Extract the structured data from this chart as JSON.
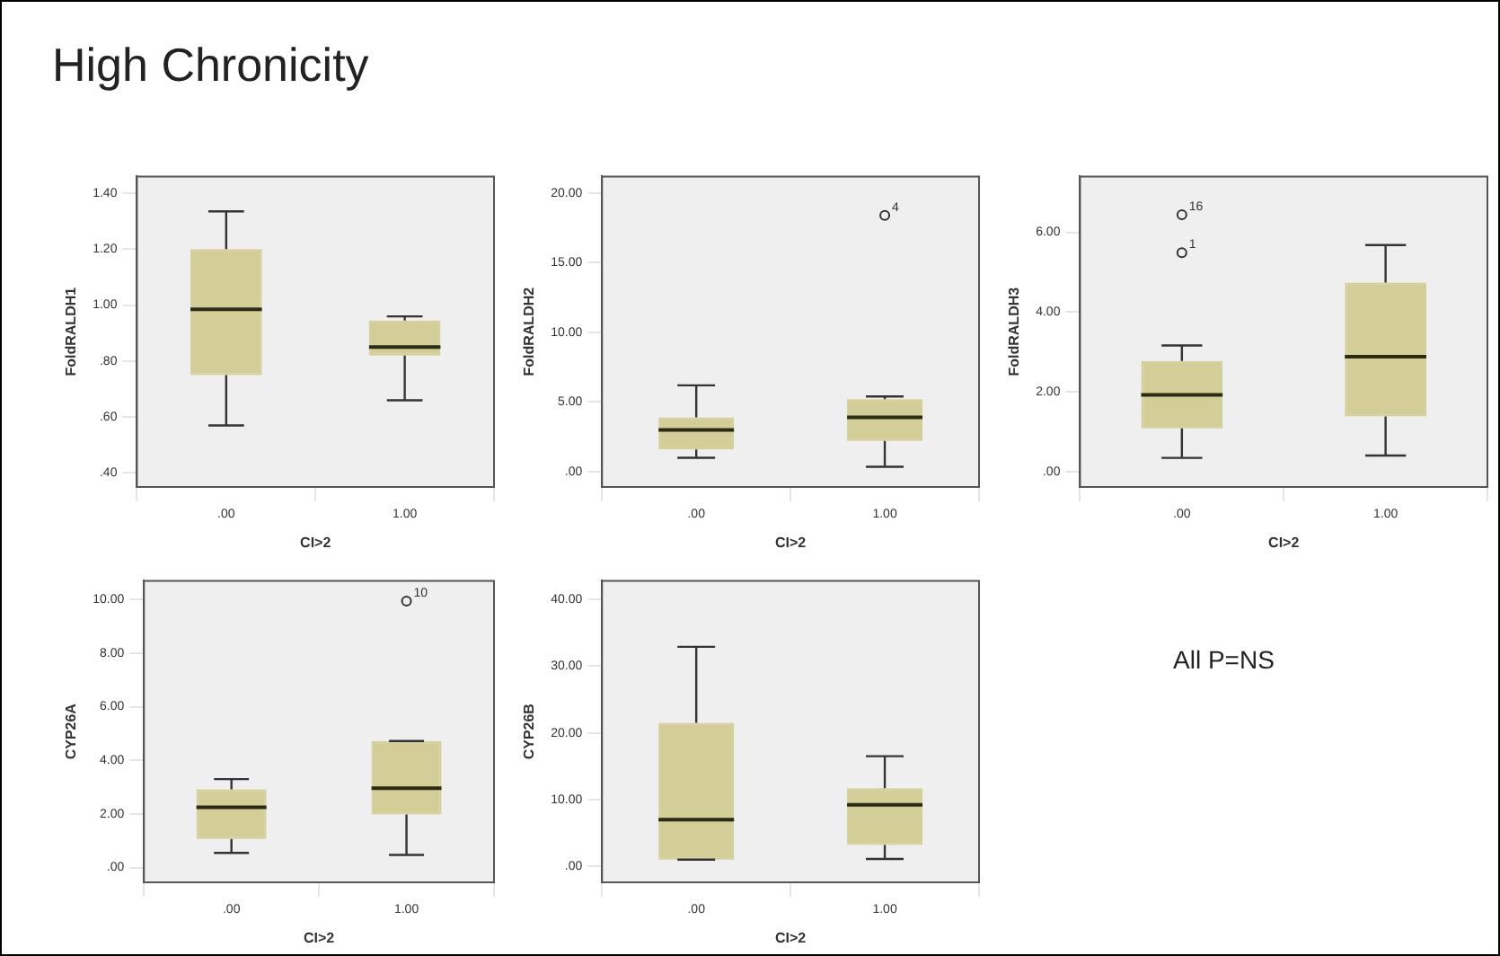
{
  "chart_data": [
    {
      "type": "box",
      "title": "High Chronicity",
      "xlabel": "CI>2",
      "ylabel": "FoldRALDH1",
      "categories": [
        ".00",
        "1.00"
      ],
      "color": "#d3cd98",
      "boxes": [
        {
          "low": 0.57,
          "q1": 0.75,
          "median": 0.985,
          "q3": 1.2,
          "high": 1.335
        },
        {
          "low": 0.66,
          "q1": 0.82,
          "median": 0.85,
          "q3": 0.945,
          "high": 0.96
        }
      ],
      "ylim": [
        0.35,
        1.46
      ],
      "yticks": [
        {
          "value": 0.4,
          "label": ".40"
        },
        {
          "value": 0.6,
          "label": ".60"
        },
        {
          "value": 0.8,
          "label": ".80"
        },
        {
          "value": 1.0,
          "label": "1.00"
        },
        {
          "value": 1.2,
          "label": "1.20"
        },
        {
          "value": 1.4,
          "label": "1.40"
        }
      ]
    },
    {
      "type": "box",
      "xlabel": "CI>2",
      "ylabel": "FoldRALDH2",
      "categories": [
        ".00",
        "1.00"
      ],
      "color": "#d3cd98",
      "boxes": [
        {
          "low": 1.0,
          "q1": 1.6,
          "median": 3.0,
          "q3": 3.9,
          "high": 6.2
        },
        {
          "low": 0.35,
          "q1": 2.2,
          "median": 3.9,
          "q3": 5.2,
          "high": 5.4,
          "outliers": [
            18.4
          ]
        }
      ],
      "ylim": [
        -1.1,
        21.2
      ],
      "yticks": [
        {
          "value": 0,
          "label": ".00"
        },
        {
          "value": 5,
          "label": "5.00"
        },
        {
          "value": 10,
          "label": "10.00"
        },
        {
          "value": 15,
          "label": "15.00"
        },
        {
          "value": 20,
          "label": "20.00"
        }
      ],
      "annotations": [
        "4"
      ]
    },
    {
      "type": "box",
      "xlabel": "CI>2",
      "ylabel": "FoldRALDH3",
      "categories": [
        ".00",
        "1.00"
      ],
      "color": "#d3cd98",
      "boxes": [
        {
          "low": 0.34,
          "q1": 1.08,
          "median": 1.92,
          "q3": 2.77,
          "high": 3.16,
          "outliers": [
            6.44,
            5.49
          ]
        },
        {
          "low": 0.4,
          "q1": 1.38,
          "median": 2.88,
          "q3": 4.74,
          "high": 5.68
        }
      ],
      "ylim": [
        -0.39,
        7.4
      ],
      "yticks": [
        {
          "value": 0,
          "label": ".00"
        },
        {
          "value": 2,
          "label": "2.00"
        },
        {
          "value": 4,
          "label": "4.00"
        },
        {
          "value": 6,
          "label": "6.00"
        }
      ],
      "annotations": [
        "16",
        "1"
      ]
    },
    {
      "type": "box",
      "xlabel": "CI>2",
      "ylabel": "CYP26A",
      "categories": [
        ".00",
        "1.00"
      ],
      "color": "#d3cd98",
      "boxes": [
        {
          "low": 0.55,
          "q1": 1.07,
          "median": 2.25,
          "q3": 2.92,
          "high": 3.3
        },
        {
          "low": 0.47,
          "q1": 1.98,
          "median": 2.96,
          "q3": 4.72,
          "high": 4.72,
          "outliers": [
            9.94
          ]
        }
      ],
      "ylim": [
        -0.55,
        10.7
      ],
      "yticks": [
        {
          "value": 0,
          "label": ".00"
        },
        {
          "value": 2,
          "label": "2.00"
        },
        {
          "value": 4,
          "label": "4.00"
        },
        {
          "value": 6,
          "label": "6.00"
        },
        {
          "value": 8,
          "label": "8.00"
        },
        {
          "value": 10,
          "label": "10.00"
        }
      ],
      "annotations": [
        "10"
      ]
    },
    {
      "type": "box",
      "xlabel": "CI>2",
      "ylabel": "CYP26B",
      "categories": [
        ".00",
        "1.00"
      ],
      "color": "#d3cd98",
      "boxes": [
        {
          "low": 1.0,
          "q1": 1.0,
          "median": 7.0,
          "q3": 21.5,
          "high": 32.9
        },
        {
          "low": 1.1,
          "q1": 3.2,
          "median": 9.2,
          "q3": 11.7,
          "high": 16.5
        }
      ],
      "ylim": [
        -2.4,
        42.8
      ],
      "yticks": [
        {
          "value": 0,
          "label": ".00"
        },
        {
          "value": 10,
          "label": "10.00"
        },
        {
          "value": 20,
          "label": "20.00"
        },
        {
          "value": 30,
          "label": "30.00"
        },
        {
          "value": 40,
          "label": "40.00"
        }
      ],
      "annotations": [
        "All P=NS"
      ]
    }
  ]
}
